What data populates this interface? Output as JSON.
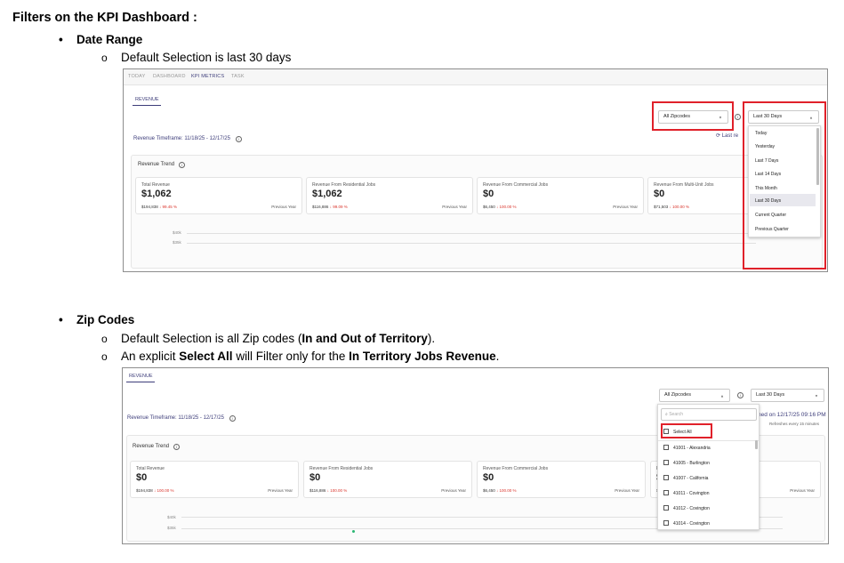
{
  "doc": {
    "title": "Filters on the KPI Dashboard :",
    "section1": {
      "bullet": "Date Range",
      "sub1": "Default Selection is last 30 days"
    },
    "section2": {
      "bullet": "Zip Codes",
      "sub1_pre": "Default Selection is all Zip codes (",
      "sub1_bold": "In and Out of Territory",
      "sub1_post": ").",
      "sub2_pre": "An explicit ",
      "sub2_bold1": "Select All",
      "sub2_mid": " will Filter only for the ",
      "sub2_bold2": "In Territory Jobs Revenue",
      "sub2_post": "."
    }
  },
  "shot1": {
    "tabs": [
      "TODAY",
      "DASHBOARD",
      "KPI METRICS",
      "TASK"
    ],
    "active_tab": "KPI METRICS",
    "subtab": "REVENUE",
    "zip_select": "All Zipcodes",
    "date_select": "Last 30 Days",
    "timeframe": "Revenue Timeframe: 11/18/25  -  12/17/25",
    "last_refresh_partial": "Last re",
    "trend_title": "Revenue Trend",
    "cards": [
      {
        "label": "Total Revenue",
        "value": "$1,062",
        "prev": "$194,838",
        "pct": "↓ 99.45 %",
        "prev_label": "Previous Year"
      },
      {
        "label": "Revenue From Residential Jobs",
        "value": "$1,062",
        "prev": "$116,886",
        "pct": "↓ 99.09 %",
        "prev_label": "Previous Year"
      },
      {
        "label": "Revenue From Commercial Jobs",
        "value": "$0",
        "prev": "$6,450",
        "pct": "↓ 100.00 %",
        "prev_label": "Previous Year"
      },
      {
        "label": "Revenue From Multi-Unit Jobs",
        "value": "$0",
        "prev": "$71,503",
        "pct": "↓ 100.00 %",
        "prev_label": "Previous Year"
      }
    ],
    "y_ticks": [
      "$40k",
      "$35k"
    ],
    "date_options": [
      "Today",
      "Yesterday",
      "Last 7 Days",
      "Last 14 Days",
      "This Month",
      "Last 30 Days",
      "Current Quarter",
      "Previous Quarter"
    ],
    "selected_option": "Last 30 Days"
  },
  "shot2": {
    "subtab": "REVENUE",
    "zip_select": "All Zipcodes",
    "date_select": "Last 30 Days",
    "timeframe": "Revenue Timeframe: 11/18/25  -  12/17/25",
    "refreshed_partial": "hed on 12/17/25 09:16 PM",
    "refreshes_every": "Refreshes every 15 minutes",
    "trend_title": "Revenue Trend",
    "cards": [
      {
        "label": "Total Revenue",
        "value": "$0",
        "prev": "$194,838",
        "pct": "↓ 100.00 %",
        "prev_label": "Previous Year"
      },
      {
        "label": "Revenue From Residential Jobs",
        "value": "$0",
        "prev": "$116,886",
        "pct": "↓ 100.00 %",
        "prev_label": "Previous Year"
      },
      {
        "label": "Revenue From Commercial Jobs",
        "value": "$0",
        "prev": "$6,450",
        "pct": "↓ 100.00 %",
        "prev_label": "Previous Year"
      },
      {
        "label": "R",
        "value": "$",
        "prev": "$",
        "pct": "",
        "prev_label": "Previous Year"
      }
    ],
    "y_ticks": [
      "$40k",
      "$35k"
    ],
    "search_placeholder": "Search",
    "select_all": "Select All",
    "zip_options": [
      "41001 - Alexandria",
      "41005 - Burlington",
      "41007 - California",
      "41011 - Covington",
      "41012 - Covington",
      "41014 - Covington"
    ]
  },
  "colors": {
    "accent": "#3d3d7a",
    "highlight_red": "#e0212a",
    "negative": "#d9342b"
  }
}
